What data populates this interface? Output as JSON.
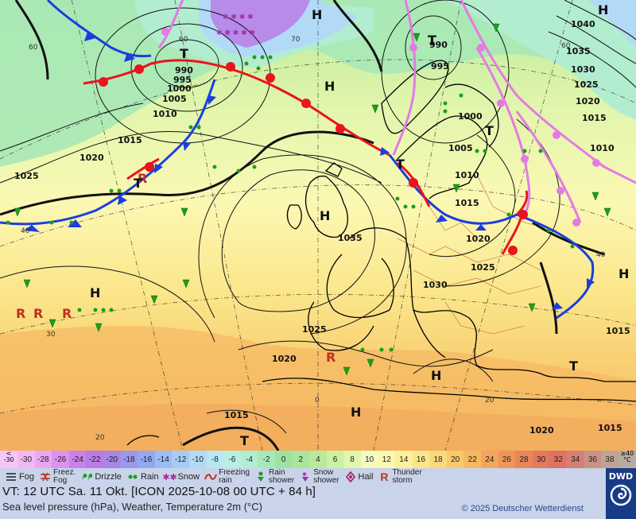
{
  "map": {
    "pressure_labels": [
      "1040",
      "1035",
      "1030",
      "1025",
      "1020",
      "1015",
      "1010",
      "1005",
      "1000",
      "995",
      "990"
    ],
    "high_label": "H",
    "low_label": "T",
    "latitude_labels": [
      "60",
      "70",
      "40",
      "30",
      "20",
      "0"
    ]
  },
  "scale": {
    "low_end": [
      "<",
      "-30"
    ],
    "high_end": [
      "≥40",
      "°C"
    ],
    "values": [
      "-30",
      "-28",
      "-26",
      "-24",
      "-22",
      "-20",
      "-18",
      "-16",
      "-14",
      "-12",
      "-10",
      "-8",
      "-6",
      "-4",
      "-2",
      "0",
      "2",
      "4",
      "6",
      "8",
      "10",
      "12",
      "14",
      "16",
      "18",
      "20",
      "22",
      "24",
      "26",
      "28",
      "30",
      "32",
      "34",
      "36",
      "38"
    ],
    "colors": [
      "#f1b9f4",
      "#e9a6f2",
      "#db93ee",
      "#cc80ea",
      "#b97be8",
      "#a985e6",
      "#9b98ea",
      "#93a9ef",
      "#9cbdf3",
      "#a6ccf5",
      "#b2daf7",
      "#b9e6f4",
      "#b8eee4",
      "#b2edd0",
      "#a7e8b7",
      "#9ee2a2",
      "#a9e59b",
      "#b9ea9c",
      "#cdf0a3",
      "#e3f6ad",
      "#f5fbc0",
      "#fbf8b3",
      "#fbf09c",
      "#fbe68a",
      "#fad97c",
      "#f8c96d",
      "#f5b863",
      "#f2a65b",
      "#ee9659",
      "#e98659",
      "#e37a5c",
      "#dd7266",
      "#d58076",
      "#c99284",
      "#c0a395"
    ]
  },
  "legend": [
    {
      "key": "fog",
      "label": "Fog",
      "icon": "fog-icon"
    },
    {
      "key": "freezing_fog",
      "label_lines": [
        "Freez.",
        "Fog"
      ],
      "icon": "freezing-fog-icon"
    },
    {
      "key": "drizzle",
      "label": "Drizzle",
      "icon": "drizzle-icon"
    },
    {
      "key": "rain",
      "label": "Rain",
      "icon": "rain-icon"
    },
    {
      "key": "snow",
      "label": "Snow",
      "icon": "snow-icon"
    },
    {
      "key": "freezing_rain",
      "label_lines": [
        "Freezing",
        "rain"
      ],
      "icon": "freezing-rain-icon"
    },
    {
      "key": "rain_shower",
      "label_lines": [
        "Rain",
        "shower"
      ],
      "icon": "rain-shower-icon"
    },
    {
      "key": "snow_shower",
      "label_lines": [
        "Snow",
        "shower"
      ],
      "icon": "snow-shower-icon"
    },
    {
      "key": "hail",
      "label": "Hail",
      "icon": "hail-icon"
    },
    {
      "key": "thunderstorm",
      "label_lines": [
        "Thunder",
        "storm"
      ],
      "icon": "thunderstorm-icon"
    }
  ],
  "info": {
    "valid_time": "VT: 12 UTC Sa.   11 Okt. [ICON 2025-10-08  00 UTC + 84 h]",
    "description": "Sea level pressure (hPa), Weather, Temperature 2m (°C)",
    "copyright": "© 2025 Deutscher Wetterdienst",
    "logo": "DWD"
  },
  "colors": {
    "cold_front": "#1a3ee0",
    "warm_front": "#e8141e",
    "occlusion": "#e47ae4",
    "isobar": "#111111",
    "legend_bg": "#c9d3ea"
  }
}
